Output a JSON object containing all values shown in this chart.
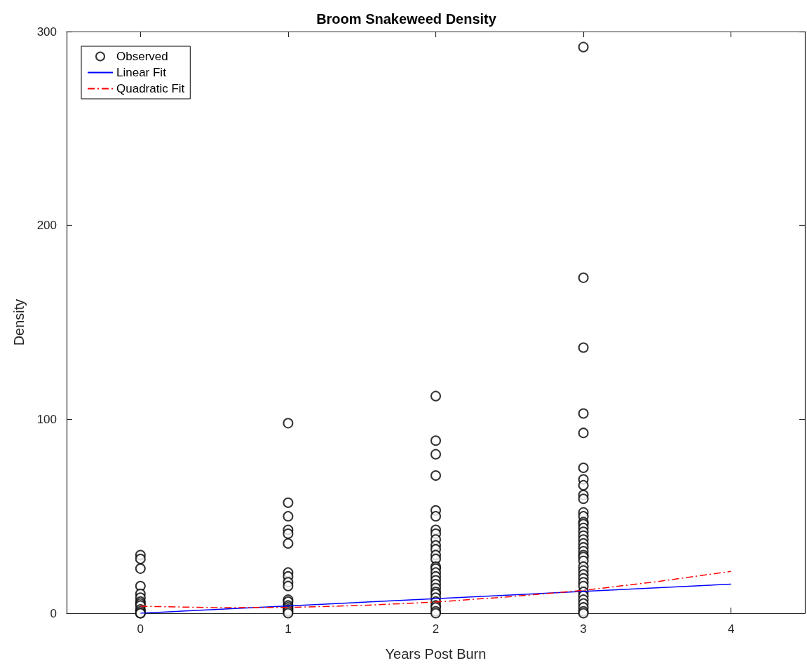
{
  "chart_data": {
    "type": "scatter",
    "title": "Broom Snakeweed Density",
    "xlabel": "Years Post Burn",
    "ylabel": "Density",
    "xlim": [
      -0.5,
      4.5
    ],
    "xticks": [
      0,
      1,
      2,
      3,
      4
    ],
    "ylim": [
      0,
      300
    ],
    "yticks": [
      0,
      100,
      200,
      300
    ],
    "grid": false,
    "legend": "top left",
    "series": [
      {
        "name": "Observed",
        "marker": "circle",
        "color": "#000000",
        "x": [
          0,
          0,
          0,
          0,
          0,
          0,
          0,
          0,
          0,
          0,
          0,
          0,
          0,
          1,
          1,
          1,
          1,
          1,
          1,
          1,
          1,
          1,
          1,
          1,
          1,
          1,
          1,
          1,
          1,
          1,
          2,
          2,
          2,
          2,
          2,
          2,
          2,
          2,
          2,
          2,
          2,
          2,
          2,
          2,
          2,
          2,
          2,
          2,
          2,
          2,
          2,
          2,
          2,
          2,
          2,
          2,
          2,
          2,
          3,
          3,
          3,
          3,
          3,
          3,
          3,
          3,
          3,
          3,
          3,
          3,
          3,
          3,
          3,
          3,
          3,
          3,
          3,
          3,
          3,
          3,
          3,
          3,
          3,
          3,
          3,
          3,
          3,
          3,
          3,
          3,
          3,
          3,
          3,
          3,
          3
        ],
        "values": [
          30,
          28,
          23,
          14,
          10,
          8,
          6,
          5,
          4,
          2,
          1,
          0,
          0,
          98,
          57,
          50,
          43,
          41,
          36,
          21,
          19,
          16,
          14,
          7,
          6,
          4,
          3,
          2,
          1,
          0,
          112,
          89,
          82,
          71,
          53,
          50,
          43,
          41,
          38,
          35,
          33,
          30,
          28,
          24,
          23,
          21,
          19,
          17,
          15,
          13,
          11,
          10,
          8,
          6,
          4,
          3,
          1,
          0,
          292,
          173,
          137,
          103,
          93,
          75,
          69,
          66,
          61,
          59,
          52,
          50,
          47,
          46,
          44,
          42,
          40,
          38,
          36,
          34,
          32,
          30,
          29,
          27,
          24,
          22,
          20,
          18,
          16,
          14,
          11,
          9,
          7,
          5,
          3,
          1,
          0
        ]
      },
      {
        "name": "Linear Fit",
        "type": "line",
        "marker": "none",
        "line_style": "solid",
        "color": "#0000ff",
        "x": [
          0,
          4
        ],
        "values": [
          0,
          15
        ]
      },
      {
        "name": "Quadratic Fit",
        "type": "line",
        "marker": "none",
        "line_style": "dashed",
        "color": "#ff0000",
        "x": [
          0,
          0.5,
          1,
          1.5,
          2,
          2.5,
          3,
          3.5,
          4
        ],
        "values": [
          3.6,
          2.9,
          3.0,
          4.0,
          5.8,
          8.5,
          11.8,
          16.3,
          21.6
        ]
      }
    ]
  }
}
